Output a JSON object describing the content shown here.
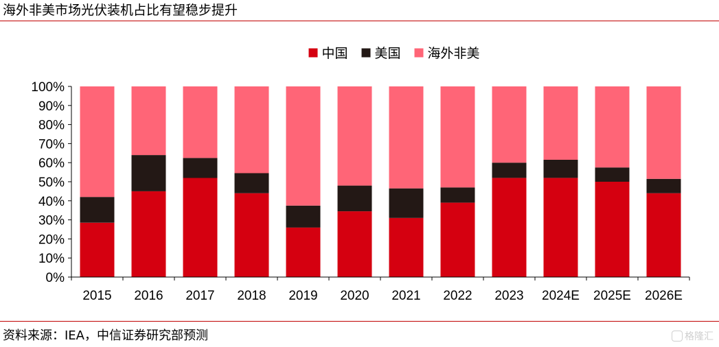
{
  "header": {
    "title": "海外非美市场光伏装机占比有望稳步提升"
  },
  "footer": {
    "source": "资料来源：IEA，中信证券研究部预测",
    "watermark": "格隆汇"
  },
  "chart_data": {
    "type": "bar",
    "stacked": true,
    "categories": [
      "2015",
      "2016",
      "2017",
      "2018",
      "2019",
      "2020",
      "2021",
      "2022",
      "2023",
      "2024E",
      "2025E",
      "2026E"
    ],
    "series": [
      {
        "name": "中国",
        "color": "#d50010",
        "values": [
          28.5,
          45,
          52,
          44,
          26,
          34.5,
          31,
          39,
          52,
          52,
          50,
          44
        ]
      },
      {
        "name": "美国",
        "color": "#231815",
        "values": [
          13.5,
          19,
          10.5,
          10.5,
          11.5,
          13.5,
          15.5,
          8,
          8,
          9.5,
          7.5,
          7.5
        ]
      },
      {
        "name": "海外非美",
        "color": "#ff6577",
        "values": [
          58,
          36,
          37.5,
          45.5,
          62.5,
          52,
          53.5,
          53,
          40,
          38.5,
          42.5,
          48.5
        ]
      }
    ],
    "yticks": [
      "0%",
      "10%",
      "20%",
      "30%",
      "40%",
      "50%",
      "60%",
      "70%",
      "80%",
      "90%",
      "100%"
    ],
    "ylim": [
      0,
      100
    ],
    "legend_position": "top-center",
    "grid": false
  }
}
